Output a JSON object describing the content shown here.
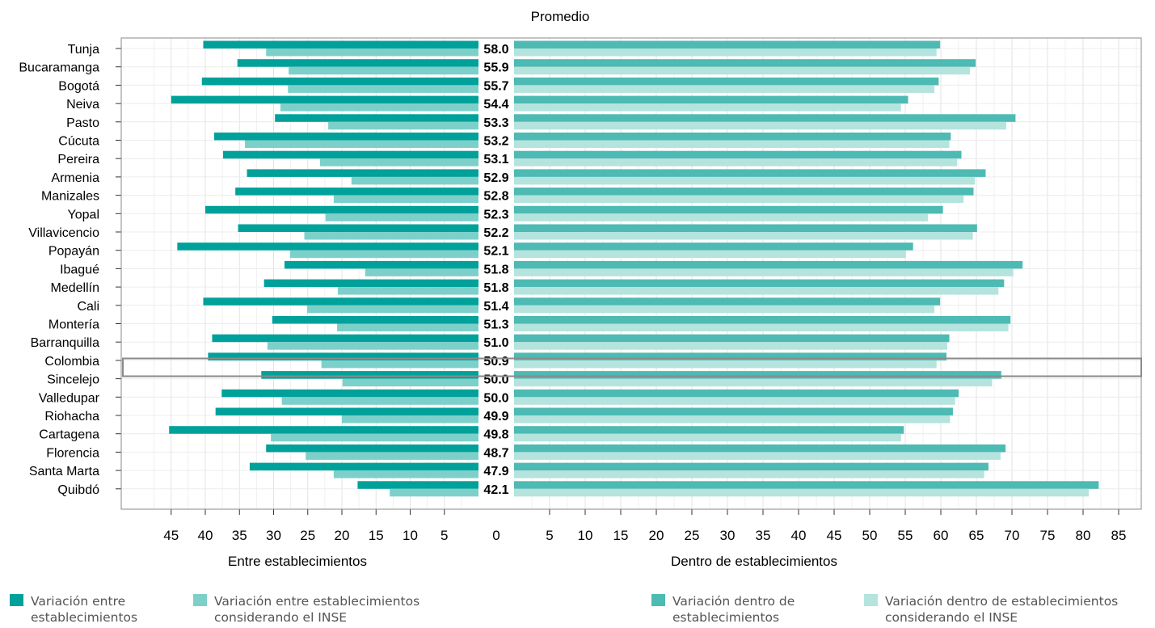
{
  "chart_data": {
    "type": "bar",
    "title": "Promedio",
    "xlabel_left": "Entre establecimientos",
    "xlabel_right": "Dentro de establecimientos",
    "xlim_left": [
      0,
      48
    ],
    "xlim_right": [
      0,
      88
    ],
    "xticks_left": [
      45,
      40,
      35,
      30,
      25,
      20,
      15,
      10,
      5,
      0
    ],
    "xticks_right": [
      5,
      10,
      15,
      20,
      25,
      30,
      35,
      40,
      45,
      50,
      55,
      60,
      65,
      70,
      75,
      80,
      85
    ],
    "grid": true,
    "highlighted": "Colombia",
    "categories": [
      "Tunja",
      "Bucaramanga",
      "Bogotá",
      "Neiva",
      "Pasto",
      "Cúcuta",
      "Pereira",
      "Armenia",
      "Manizales",
      "Yopal",
      "Villavicencio",
      "Popayán",
      "Ibagué",
      "Medellín",
      "Cali",
      "Montería",
      "Barranquilla",
      "Colombia",
      "Sincelejo",
      "Valledupar",
      "Riohacha",
      "Cartagena",
      "Florencia",
      "Santa Marta",
      "Quibdó"
    ],
    "promedio": [
      "58.0",
      "55.9",
      "55.7",
      "54.4",
      "53.3",
      "53.2",
      "53.1",
      "52.9",
      "52.8",
      "52.3",
      "52.2",
      "52.1",
      "51.8",
      "51.8",
      "51.4",
      "51.3",
      "51.0",
      "50.9",
      "50.0",
      "50.0",
      "49.9",
      "49.8",
      "48.7",
      "47.9",
      "42.1"
    ],
    "series": [
      {
        "name": "Variación entre establecimientos",
        "side": "left",
        "color": "#00a19a",
        "values": [
          40.3,
          35.3,
          40.5,
          45,
          29.8,
          38.7,
          37.4,
          33.9,
          35.6,
          40,
          35.2,
          44.1,
          28.4,
          31.4,
          40.3,
          30.2,
          39,
          39.6,
          31.8,
          37.6,
          38.5,
          45.3,
          31.1,
          33.5,
          17.7
        ]
      },
      {
        "name": "Variación entre establecimientos considerando el INSE",
        "side": "left",
        "color": "#7dd0ca",
        "values": [
          31.1,
          27.8,
          27.9,
          29,
          22,
          34.2,
          23.2,
          18.6,
          21.2,
          22.4,
          25.5,
          27.6,
          16.6,
          20.6,
          25.1,
          20.7,
          30.9,
          23,
          19.9,
          28.8,
          20,
          30.4,
          25.3,
          21.2,
          13
        ]
      },
      {
        "name": "Variación dentro de establecimientos",
        "side": "right",
        "color": "#4dbab3",
        "values": [
          59.9,
          64.9,
          59.7,
          55.4,
          70.5,
          61.4,
          62.9,
          66.3,
          64.6,
          60.3,
          65.1,
          56.1,
          71.5,
          68.9,
          59.9,
          69.8,
          61.2,
          60.8,
          68.5,
          62.5,
          61.7,
          54.8,
          69.1,
          66.7,
          82.2
        ]
      },
      {
        "name": "Variación dentro de establecimientos considerando el INSE",
        "side": "right",
        "color": "#b5e3de",
        "values": [
          59.4,
          64.1,
          59.1,
          54.4,
          69.2,
          61.2,
          62.3,
          64.8,
          63.2,
          58.2,
          64.5,
          55.1,
          70.2,
          68.1,
          59.1,
          69.5,
          60.9,
          59.4,
          67.2,
          62,
          61.3,
          54.4,
          68.4,
          66.1,
          80.8
        ]
      }
    ]
  },
  "legend": [
    {
      "label": "Variación entre\nestablecimientos",
      "color": "#00a19a"
    },
    {
      "label": "Variación entre establecimientos\nconsiderando el INSE",
      "color": "#7dd0ca"
    },
    {
      "label": "Variación dentro de\nestablecimientos",
      "color": "#4dbab3"
    },
    {
      "label": "Variación dentro de establecimientos\nconsiderando el INSE",
      "color": "#b5e3de"
    }
  ]
}
